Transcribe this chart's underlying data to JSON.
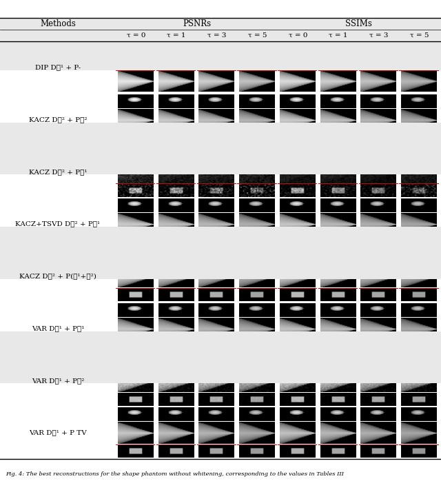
{
  "header_col1": "Methods",
  "header_col2": "PSNRs",
  "header_col3": "SSIMs",
  "tau_labels": [
    "τ = 0",
    "τ = 1",
    "τ = 3",
    "τ = 5",
    "τ = 0",
    "τ = 1",
    "τ = 3",
    "τ = 5"
  ],
  "row_labels_raw": [
    "DIP Dℓ¹ + P-",
    "KACZ Dℓ² + Pℓ²",
    "KACZ Dℓ² + Pℓ¹",
    "KACZ+TSVD Dℓ² + Pℓ¹",
    "KACZ Dℓ² + P(ℓ¹+ℓ²)",
    "VAR Dℓ¹ + Pℓ¹",
    "VAR Dℓ¹ + Pℓ²",
    "VAR Dℓ¹ + P TV"
  ],
  "shaded_rows": [
    0,
    2,
    4,
    6
  ],
  "background_color": "#ffffff",
  "shade_color": "#e8e8e8",
  "red_line_color": "#cc0000",
  "caption": "Fig. 4: The best reconstructions for the shape phantom without whitening, corresponding to the values in Tables III"
}
